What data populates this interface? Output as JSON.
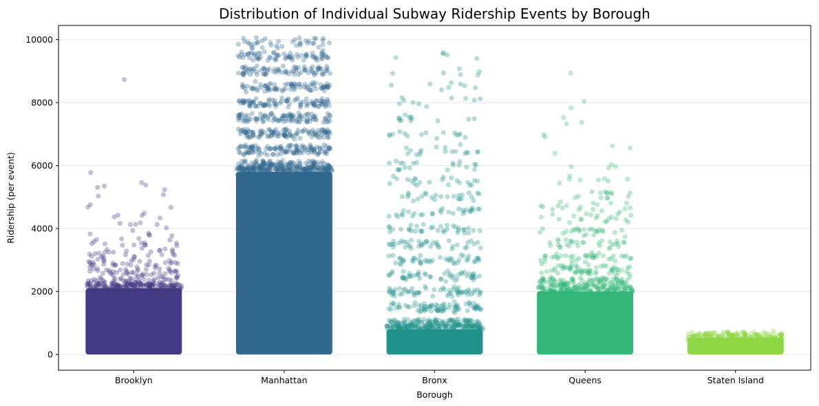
{
  "chart_data": {
    "type": "scatter",
    "subtype": "strip",
    "title": "Distribution of Individual Subway Ridership Events by Borough",
    "xlabel": "Borough",
    "ylabel": "Ridership (per event)",
    "categories": [
      "Brooklyn",
      "Manhattan",
      "Bronx",
      "Queens",
      "Staten Island"
    ],
    "ylim": [
      -500,
      10450
    ],
    "yticks": [
      0,
      2000,
      4000,
      6000,
      8000,
      10000
    ],
    "grid": "horizontal",
    "series": [
      {
        "category": "Brooklyn",
        "color": "#443983",
        "dense_range": [
          0,
          2100
        ],
        "outliers": [
          {
            "y": 2300,
            "n": 60
          },
          {
            "y": 2600,
            "n": 45
          },
          {
            "y": 2900,
            "n": 35
          },
          {
            "y": 3200,
            "n": 25
          },
          {
            "y": 3500,
            "n": 14
          },
          {
            "y": 3800,
            "n": 8
          },
          {
            "y": 4100,
            "n": 6
          },
          {
            "y": 4400,
            "n": 5
          },
          {
            "y": 4750,
            "n": 3
          },
          {
            "y": 5000,
            "n": 2
          },
          {
            "y": 5350,
            "n": 5
          },
          {
            "y": 5700,
            "n": 1
          },
          {
            "y": 8700,
            "n": 1
          }
        ]
      },
      {
        "category": "Manhattan",
        "color": "#31688e",
        "dense_range": [
          0,
          5800
        ],
        "outliers": [
          {
            "y": 6000,
            "n": 150
          },
          {
            "y": 6500,
            "n": 120
          },
          {
            "y": 7000,
            "n": 110
          },
          {
            "y": 7500,
            "n": 100
          },
          {
            "y": 8000,
            "n": 90
          },
          {
            "y": 8500,
            "n": 80
          },
          {
            "y": 9000,
            "n": 80
          },
          {
            "y": 9500,
            "n": 70
          },
          {
            "y": 9900,
            "n": 40
          }
        ]
      },
      {
        "category": "Bronx",
        "color": "#21918c",
        "dense_range": [
          0,
          800
        ],
        "outliers": [
          {
            "y": 1000,
            "n": 120
          },
          {
            "y": 1500,
            "n": 80
          },
          {
            "y": 2000,
            "n": 60
          },
          {
            "y": 2500,
            "n": 50
          },
          {
            "y": 3000,
            "n": 45
          },
          {
            "y": 3500,
            "n": 40
          },
          {
            "y": 4000,
            "n": 35
          },
          {
            "y": 4500,
            "n": 30
          },
          {
            "y": 5000,
            "n": 25
          },
          {
            "y": 5500,
            "n": 22
          },
          {
            "y": 6000,
            "n": 20
          },
          {
            "y": 6500,
            "n": 18
          },
          {
            "y": 7000,
            "n": 15
          },
          {
            "y": 7500,
            "n": 12
          },
          {
            "y": 8000,
            "n": 10
          },
          {
            "y": 8500,
            "n": 8
          },
          {
            "y": 9000,
            "n": 6
          },
          {
            "y": 9500,
            "n": 5
          }
        ]
      },
      {
        "category": "Queens",
        "color": "#35b779",
        "dense_range": [
          0,
          2000
        ],
        "outliers": [
          {
            "y": 2300,
            "n": 110
          },
          {
            "y": 2700,
            "n": 60
          },
          {
            "y": 3100,
            "n": 40
          },
          {
            "y": 3500,
            "n": 30
          },
          {
            "y": 3900,
            "n": 25
          },
          {
            "y": 4300,
            "n": 20
          },
          {
            "y": 4700,
            "n": 18
          },
          {
            "y": 5100,
            "n": 14
          },
          {
            "y": 5500,
            "n": 8
          },
          {
            "y": 6000,
            "n": 4
          },
          {
            "y": 6500,
            "n": 3
          },
          {
            "y": 7000,
            "n": 2
          },
          {
            "y": 7400,
            "n": 3
          },
          {
            "y": 7900,
            "n": 2
          },
          {
            "y": 8800,
            "n": 1
          }
        ]
      },
      {
        "category": "Staten Island",
        "color": "#8fd744",
        "dense_range": [
          0,
          530
        ],
        "outliers": [
          {
            "y": 570,
            "n": 25
          }
        ]
      }
    ]
  }
}
